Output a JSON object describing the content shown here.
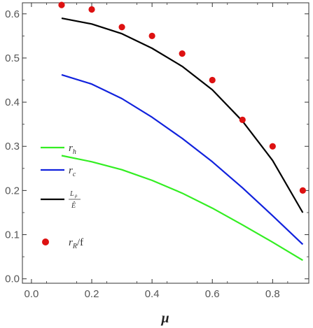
{
  "chart_data": {
    "type": "line",
    "title": "",
    "xlabel": "μ",
    "ylabel": "",
    "xlim": [
      -0.03,
      0.92
    ],
    "ylim": [
      -0.01,
      0.625
    ],
    "xticks": [
      0.0,
      0.2,
      0.4,
      0.6,
      0.8
    ],
    "xtick_labels": [
      "0.0",
      "0.2",
      "0.4",
      "0.6",
      "0.8"
    ],
    "yticks": [
      0.0,
      0.1,
      0.2,
      0.3,
      0.4,
      0.5,
      0.6
    ],
    "ytick_labels": [
      "0.0",
      "0.1",
      "0.2",
      "0.3",
      "0.4",
      "0.5",
      "0.6"
    ],
    "grid": false,
    "legend_position": "left",
    "series": [
      {
        "key": "rh",
        "legend": {
          "main": "r",
          "sub": "h"
        },
        "color": "#33ee22",
        "style": "line",
        "x": [
          0.1,
          0.2,
          0.3,
          0.4,
          0.5,
          0.6,
          0.7,
          0.8,
          0.9
        ],
        "y": [
          0.279,
          0.265,
          0.247,
          0.223,
          0.194,
          0.16,
          0.122,
          0.083,
          0.042
        ]
      },
      {
        "key": "rc",
        "legend": {
          "main": "r",
          "sub": "c"
        },
        "color": "#1122dd",
        "style": "line",
        "x": [
          0.1,
          0.2,
          0.3,
          0.4,
          0.5,
          0.6,
          0.7,
          0.8,
          0.9
        ],
        "y": [
          0.462,
          0.441,
          0.408,
          0.366,
          0.318,
          0.265,
          0.206,
          0.143,
          0.078
        ]
      },
      {
        "key": "lrho",
        "legend": {
          "num_main": "L",
          "num_sub": "ρ",
          "den_main": "Ê"
        },
        "color": "#000000",
        "style": "line",
        "x": [
          0.1,
          0.2,
          0.3,
          0.4,
          0.5,
          0.6,
          0.7,
          0.8,
          0.9
        ],
        "y": [
          0.59,
          0.577,
          0.555,
          0.522,
          0.481,
          0.428,
          0.357,
          0.268,
          0.15
        ]
      },
      {
        "key": "rR",
        "legend": {
          "main": "r",
          "sub": "R",
          "suffix": "/f"
        },
        "color": "#dd1111",
        "style": "markers",
        "x": [
          0.1,
          0.2,
          0.3,
          0.4,
          0.5,
          0.6,
          0.7,
          0.8,
          0.9
        ],
        "y": [
          0.62,
          0.61,
          0.57,
          0.55,
          0.51,
          0.45,
          0.36,
          0.3,
          0.2
        ]
      }
    ]
  }
}
